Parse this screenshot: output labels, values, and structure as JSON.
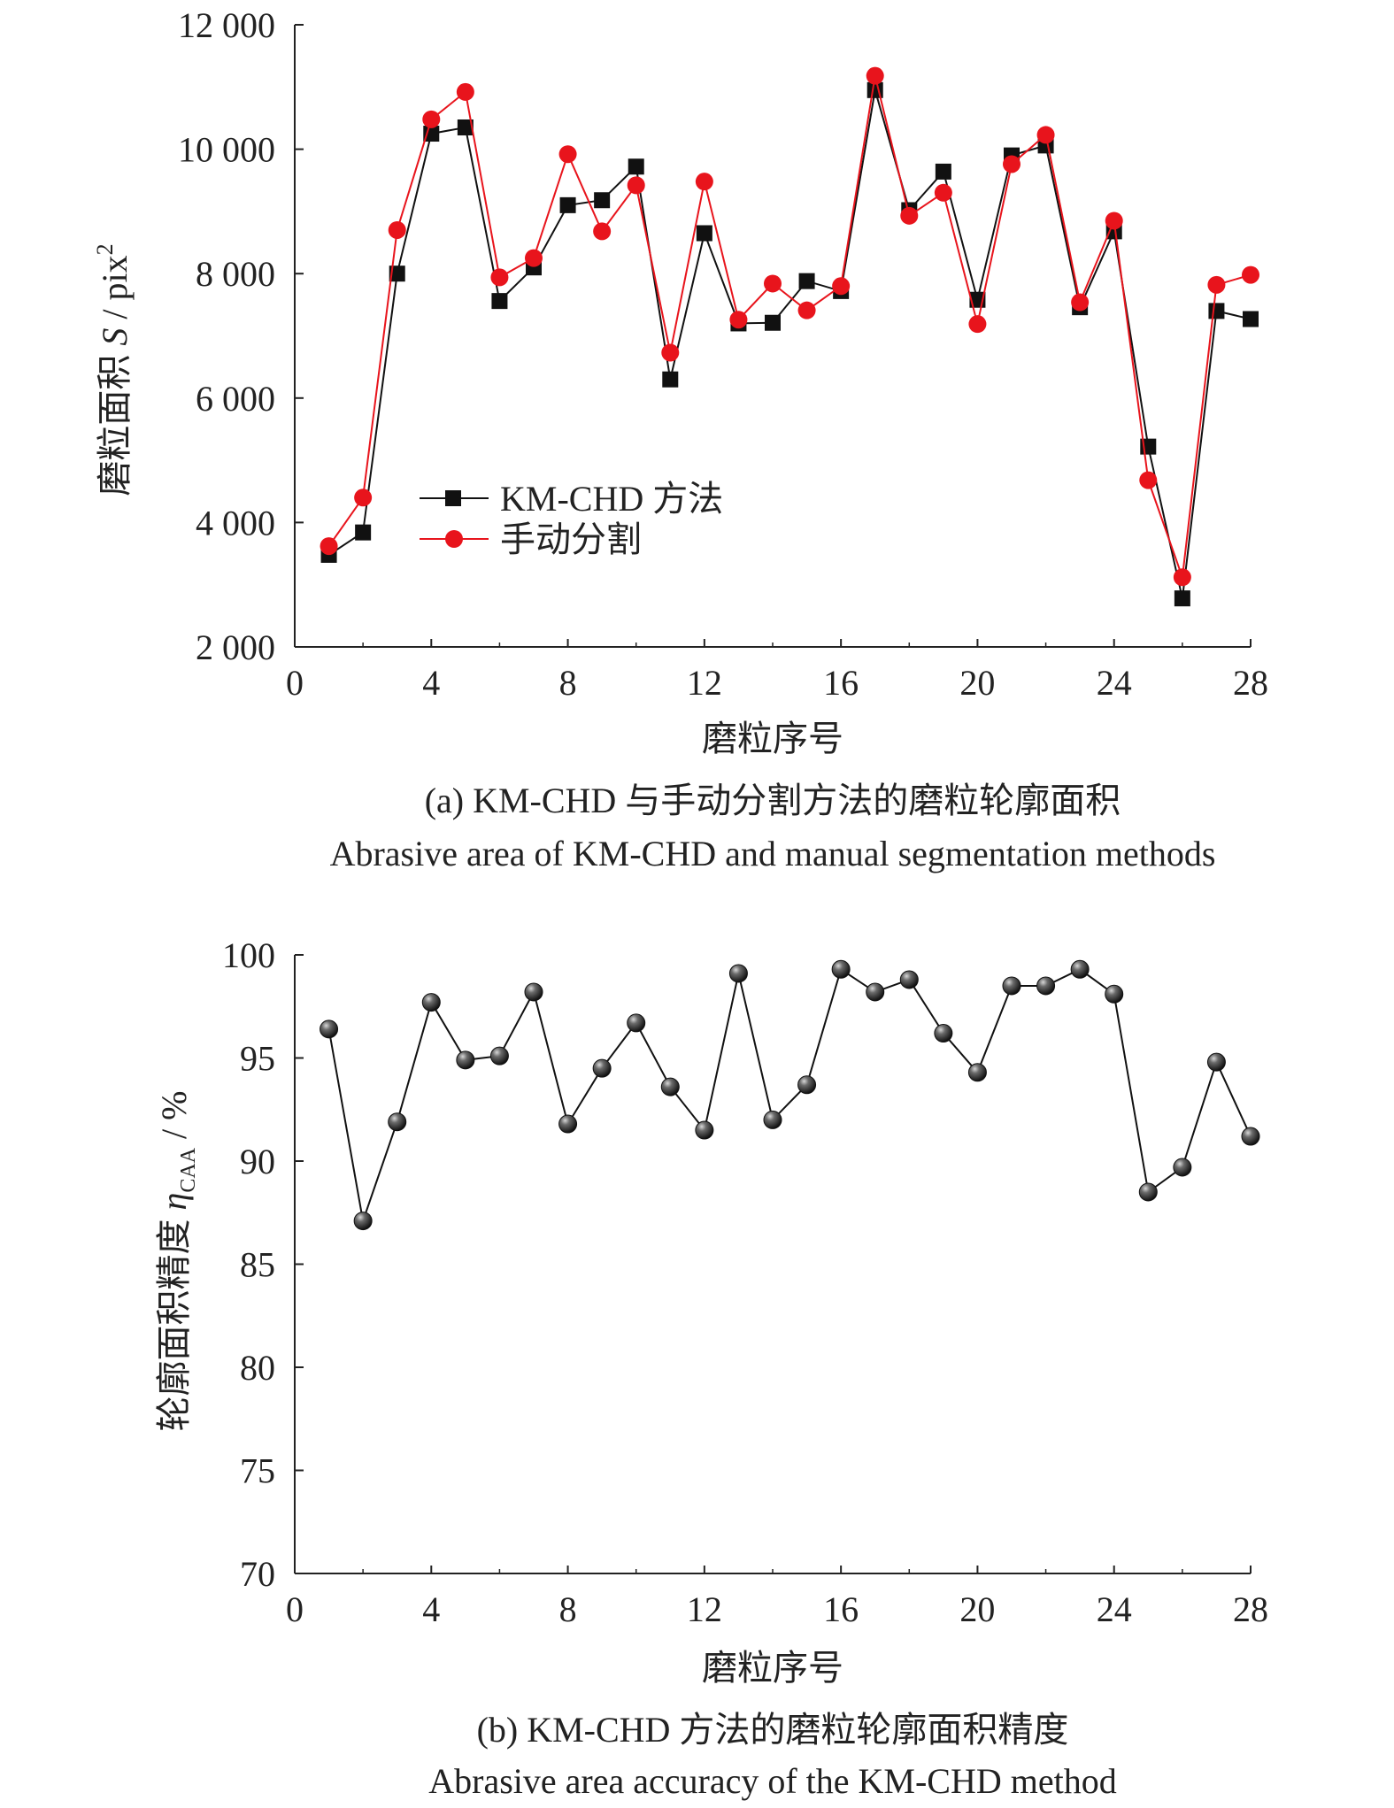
{
  "chart_data": [
    {
      "type": "line",
      "panel": "a",
      "ylabel_prefix": "磨粒面积",
      "ylabel_symbol": "S",
      "ylabel_unit": "pix",
      "ylabel_sup": "2",
      "xlabel": "磨粒序号",
      "caption_cn": "(a) KM-CHD 与手动分割方法的磨粒轮廓面积",
      "caption_en": "Abrasive area of KM-CHD and manual segmentation methods",
      "xlim": [
        0,
        28
      ],
      "ylim": [
        2000,
        12000
      ],
      "xticks": [
        "0",
        "4",
        "8",
        "12",
        "16",
        "20",
        "24",
        "28"
      ],
      "yticks": [
        "2 000",
        "4 000",
        "6 000",
        "8 000",
        "10 000",
        "12 000"
      ],
      "grid": false,
      "legend_position": "left-middle",
      "x": [
        1,
        2,
        3,
        4,
        5,
        6,
        7,
        8,
        9,
        10,
        11,
        12,
        13,
        14,
        15,
        16,
        17,
        18,
        19,
        20,
        21,
        22,
        23,
        24,
        25,
        26,
        27,
        28
      ],
      "series": [
        {
          "name": "KM-CHD 方法",
          "color": "#111111",
          "marker": "square",
          "values": [
            3480,
            3840,
            8000,
            10250,
            10350,
            7560,
            8100,
            9100,
            9180,
            9720,
            6300,
            8650,
            7200,
            7210,
            7880,
            7720,
            10950,
            9020,
            9640,
            7580,
            9900,
            10060,
            7460,
            8680,
            5220,
            2780,
            7400,
            7270
          ]
        },
        {
          "name": "手动分割",
          "color": "#e8141c",
          "marker": "circle",
          "values": [
            3620,
            4400,
            8700,
            10480,
            10920,
            7940,
            8250,
            9920,
            8680,
            9420,
            6730,
            9480,
            7260,
            7840,
            7410,
            7800,
            11180,
            8930,
            9300,
            7190,
            9760,
            10230,
            7540,
            8850,
            4680,
            3120,
            7820,
            7980
          ]
        }
      ]
    },
    {
      "type": "line",
      "panel": "b",
      "ylabel_prefix": "轮廓面积精度",
      "ylabel_symbol": "η",
      "ylabel_sub": "CAA",
      "ylabel_unit": "%",
      "xlabel": "磨粒序号",
      "caption_cn": "(b) KM-CHD 方法的磨粒轮廓面积精度",
      "caption_en": "Abrasive area accuracy of the KM-CHD method",
      "xlim": [
        0,
        28
      ],
      "ylim": [
        70,
        100
      ],
      "xticks": [
        "0",
        "4",
        "8",
        "12",
        "16",
        "20",
        "24",
        "28"
      ],
      "yticks": [
        "70",
        "75",
        "80",
        "85",
        "90",
        "95",
        "100"
      ],
      "grid": false,
      "x": [
        1,
        2,
        3,
        4,
        5,
        6,
        7,
        8,
        9,
        10,
        11,
        12,
        13,
        14,
        15,
        16,
        17,
        18,
        19,
        20,
        21,
        22,
        23,
        24,
        25,
        26,
        27,
        28
      ],
      "series": [
        {
          "color": "#111111",
          "marker": "sphere",
          "values": [
            96.4,
            87.1,
            91.9,
            97.7,
            94.9,
            95.1,
            98.2,
            91.8,
            94.5,
            96.7,
            93.6,
            91.5,
            99.1,
            92.0,
            93.7,
            99.3,
            98.2,
            98.8,
            96.2,
            94.3,
            98.5,
            98.5,
            99.3,
            98.1,
            88.5,
            89.7,
            94.8,
            91.2
          ]
        }
      ]
    }
  ]
}
